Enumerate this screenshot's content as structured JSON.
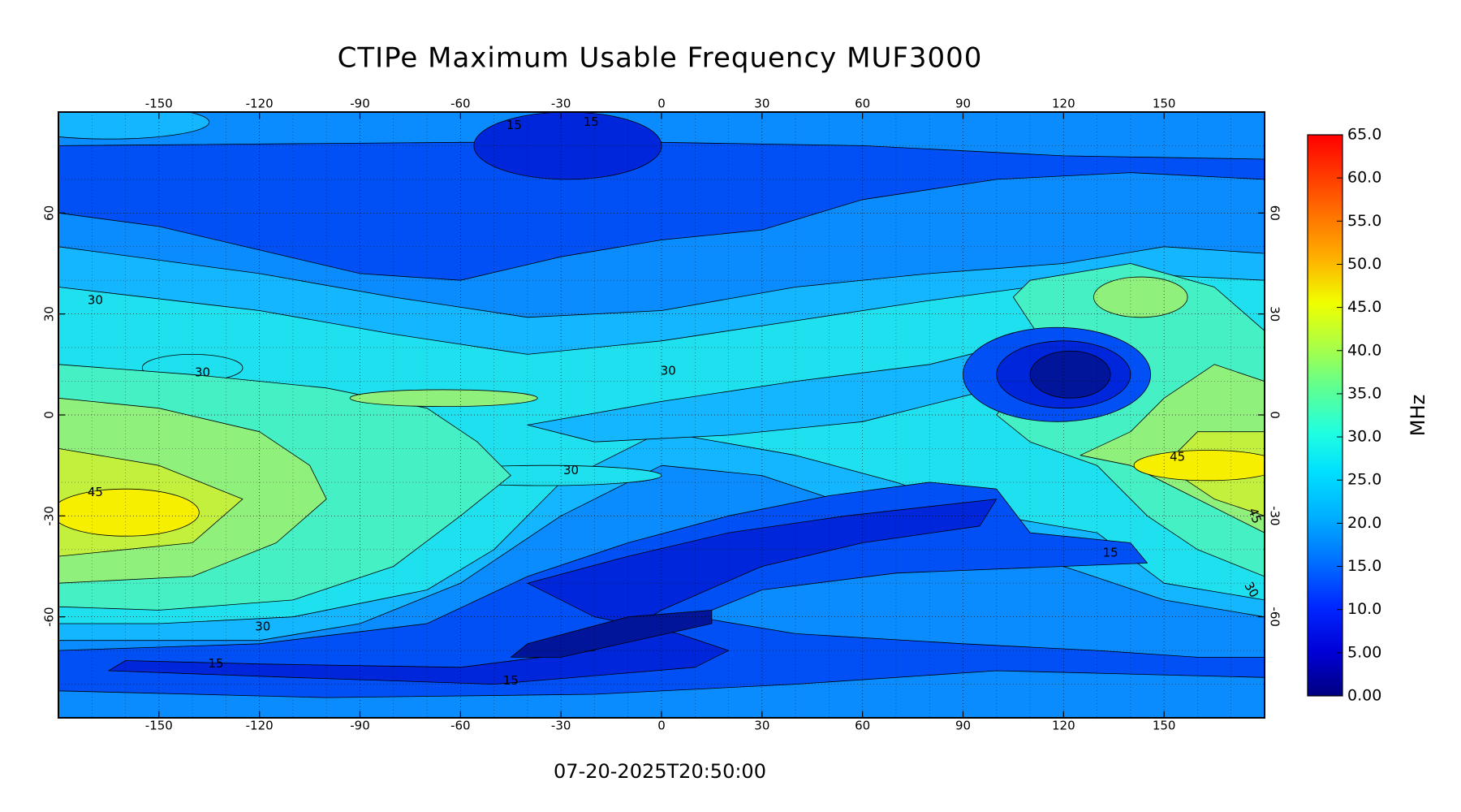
{
  "title": "CTIPe Maximum Usable Frequency MUF3000",
  "timestamp": "07-20-2025T20:50:00",
  "map": {
    "xlim": [
      -180,
      180
    ],
    "ylim": [
      -90,
      90
    ],
    "xticks": [
      -150,
      -120,
      -90,
      -60,
      -30,
      0,
      30,
      60,
      90,
      120,
      150
    ],
    "yticks": [
      -60,
      -30,
      0,
      30,
      60
    ],
    "grid": true
  },
  "colorbar": {
    "label": "MHz",
    "lim": [
      0,
      65
    ],
    "ticks": [
      {
        "value": 0,
        "label": "0.00"
      },
      {
        "value": 5,
        "label": "5.00"
      },
      {
        "value": 10,
        "label": "10.0"
      },
      {
        "value": 15,
        "label": "15.0"
      },
      {
        "value": 20,
        "label": "20.0"
      },
      {
        "value": 25,
        "label": "25.0"
      },
      {
        "value": 30,
        "label": "30.0"
      },
      {
        "value": 35,
        "label": "35.0"
      },
      {
        "value": 40,
        "label": "40.0"
      },
      {
        "value": 45,
        "label": "45.0"
      },
      {
        "value": 50,
        "label": "50.0"
      },
      {
        "value": 55,
        "label": "55.0"
      },
      {
        "value": 60,
        "label": "60.0"
      },
      {
        "value": 65,
        "label": "65.0"
      }
    ]
  },
  "contour_labels": [
    "15",
    "15",
    "30",
    "30",
    "30",
    "30",
    "45",
    "30",
    "15",
    "15",
    "15",
    "45",
    "30",
    "45"
  ]
}
